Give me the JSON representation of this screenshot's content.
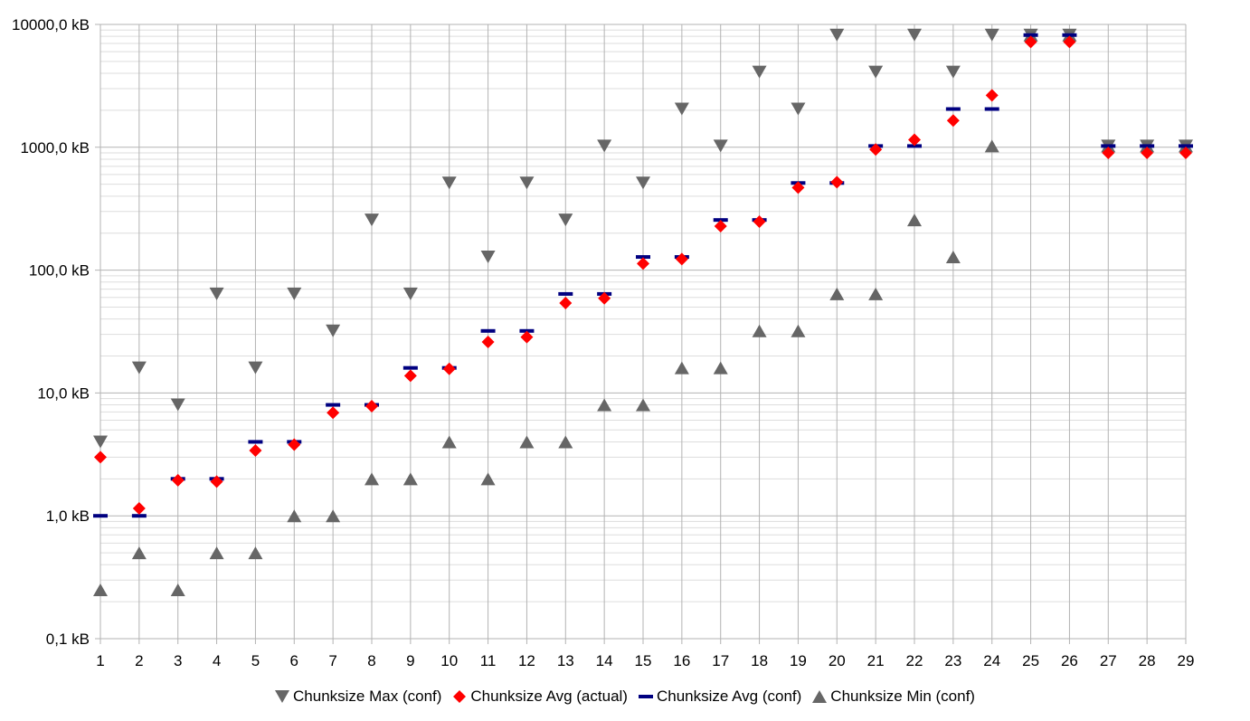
{
  "chart_data": {
    "type": "scatter",
    "title": "",
    "xlabel": "",
    "ylabel": "",
    "y_scale": "log",
    "ylim": [
      0.1,
      10000
    ],
    "y_tick_values": [
      0.1,
      1,
      10,
      100,
      1000,
      10000
    ],
    "y_tick_labels": [
      "0,1 kB",
      "1,0 kB",
      "10,0 kB",
      "100,0 kB",
      "1000,0 kB",
      "10000,0 kB"
    ],
    "grid": true,
    "legend_position": "bottom",
    "x": [
      1,
      2,
      3,
      4,
      5,
      6,
      7,
      8,
      9,
      10,
      11,
      12,
      13,
      14,
      15,
      16,
      17,
      18,
      19,
      20,
      21,
      22,
      23,
      24,
      25,
      26,
      27,
      28,
      29
    ],
    "series": [
      {
        "name": "Chunksize Max (conf)",
        "marker": "triangle-down",
        "color": "#666666",
        "values": [
          4,
          16,
          8,
          64,
          16,
          64,
          32,
          256,
          64,
          512,
          128,
          512,
          256,
          1024,
          512,
          2048,
          1024,
          4096,
          2048,
          8192,
          4096,
          8192,
          4096,
          8192,
          8192,
          8192,
          1024,
          1024,
          1024
        ]
      },
      {
        "name": "Chunksize Avg (actual)",
        "marker": "diamond",
        "color": "#ff0000",
        "values": [
          3,
          1.15,
          1.95,
          1.9,
          3.4,
          3.8,
          6.9,
          7.8,
          13.8,
          15.7,
          26,
          28.5,
          54,
          59,
          113,
          123,
          228,
          248,
          470,
          520,
          960,
          1150,
          1650,
          2650,
          7200,
          7200,
          900,
          900,
          900
        ]
      },
      {
        "name": "Chunksize Avg (conf)",
        "marker": "dash",
        "color": "#000080",
        "values": [
          1,
          1,
          2,
          2,
          4,
          4,
          8,
          8,
          16,
          16,
          32,
          32,
          64,
          64,
          128,
          128,
          256,
          256,
          512,
          512,
          1024,
          1024,
          2048,
          2048,
          8192,
          8192,
          1024,
          1024,
          1024
        ]
      },
      {
        "name": "Chunksize Min (conf)",
        "marker": "triangle-up",
        "color": "#666666",
        "values": [
          0.25,
          0.5,
          0.25,
          0.5,
          0.5,
          1,
          1,
          2,
          2,
          4,
          2,
          4,
          4,
          8,
          8,
          16,
          16,
          32,
          32,
          64,
          64,
          256,
          128,
          1024,
          8192,
          8192,
          1024,
          1024,
          1024
        ]
      }
    ]
  }
}
